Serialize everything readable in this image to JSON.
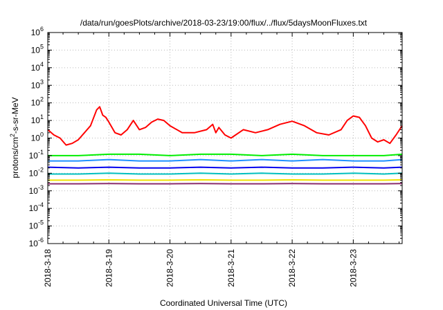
{
  "chart_data": {
    "type": "line",
    "title": "/data/run/goesPlots/archive/2018-03-23/19:00/flux/../flux/5daysMoonFluxes.txt",
    "xlabel": "Coordinated Universal Time (UTC)",
    "ylabel": "protons/cm²-s-sr-MeV",
    "yscale": "log",
    "ylim": [
      1e-06,
      1000000.0
    ],
    "xlim_days": [
      0,
      5.8
    ],
    "xticks": [
      {
        "label": "2018-3-18",
        "day": 0
      },
      {
        "label": "2018-3-19",
        "day": 1
      },
      {
        "label": "2018-3-20",
        "day": 2
      },
      {
        "label": "2018-3-21",
        "day": 3
      },
      {
        "label": "2018-3-22",
        "day": 4
      },
      {
        "label": "2018-3-23",
        "day": 5
      }
    ],
    "yticks": [
      {
        "base": "10",
        "exp": "-6",
        "value": 1e-06
      },
      {
        "base": "10",
        "exp": "-5",
        "value": 1e-05
      },
      {
        "base": "10",
        "exp": "-4",
        "value": 0.0001
      },
      {
        "base": "10",
        "exp": "-3",
        "value": 0.001
      },
      {
        "base": "10",
        "exp": "-2",
        "value": 0.01
      },
      {
        "base": "10",
        "exp": "-1",
        "value": 0.1
      },
      {
        "base": "10",
        "exp": "0",
        "value": 1
      },
      {
        "base": "10",
        "exp": "1",
        "value": 10
      },
      {
        "base": "10",
        "exp": "2",
        "value": 100
      },
      {
        "base": "10",
        "exp": "3",
        "value": 1000
      },
      {
        "base": "10",
        "exp": "4",
        "value": 10000
      },
      {
        "base": "10",
        "exp": "5",
        "value": 100000
      },
      {
        "base": "10",
        "exp": "6",
        "value": 1000000
      }
    ],
    "grid": true,
    "series": [
      {
        "color": "#ff0000",
        "days": [
          0,
          0.1,
          0.2,
          0.3,
          0.4,
          0.5,
          0.6,
          0.7,
          0.8,
          0.85,
          0.9,
          0.95,
          1.0,
          1.1,
          1.2,
          1.3,
          1.4,
          1.5,
          1.6,
          1.7,
          1.8,
          1.9,
          2.0,
          2.2,
          2.4,
          2.6,
          2.7,
          2.75,
          2.8,
          2.9,
          3.0,
          3.2,
          3.4,
          3.6,
          3.8,
          4.0,
          4.2,
          4.4,
          4.6,
          4.8,
          4.9,
          5.0,
          5.1,
          5.2,
          5.3,
          5.4,
          5.5,
          5.6,
          5.7,
          5.8
        ],
        "values": [
          3,
          1.5,
          1.0,
          0.4,
          0.5,
          0.8,
          2,
          5,
          40,
          60,
          20,
          15,
          8,
          2,
          1.5,
          3,
          10,
          3,
          4,
          8,
          12,
          10,
          5,
          2,
          2,
          3,
          6,
          2,
          4,
          1.5,
          1.0,
          3,
          2,
          3,
          6,
          9,
          5,
          2,
          1.5,
          3,
          10,
          18,
          15,
          5,
          1.0,
          0.6,
          0.8,
          0.5,
          1.5,
          5
        ]
      },
      {
        "color": "#00ee00",
        "days": [
          0,
          0.5,
          1.0,
          1.5,
          2.0,
          2.5,
          3.0,
          3.5,
          4.0,
          4.5,
          5.0,
          5.5,
          5.8
        ],
        "values": [
          0.1,
          0.1,
          0.12,
          0.12,
          0.1,
          0.12,
          0.12,
          0.1,
          0.12,
          0.1,
          0.1,
          0.1,
          0.12
        ]
      },
      {
        "color": "#1e90ff",
        "days": [
          0,
          0.5,
          1.0,
          1.5,
          2.0,
          2.5,
          3.0,
          3.5,
          4.0,
          4.5,
          5.0,
          5.5,
          5.8
        ],
        "values": [
          0.05,
          0.05,
          0.06,
          0.05,
          0.05,
          0.06,
          0.05,
          0.06,
          0.05,
          0.06,
          0.05,
          0.05,
          0.06
        ]
      },
      {
        "color": "#0000ee",
        "days": [
          0,
          0.5,
          1.0,
          1.5,
          2.0,
          2.5,
          3.0,
          3.5,
          4.0,
          4.5,
          5.0,
          5.5,
          5.8
        ],
        "values": [
          0.022,
          0.02,
          0.022,
          0.02,
          0.02,
          0.022,
          0.02,
          0.022,
          0.02,
          0.02,
          0.022,
          0.02,
          0.022
        ]
      },
      {
        "color": "#00bfbf",
        "days": [
          0,
          0.5,
          1.0,
          1.5,
          2.0,
          2.5,
          3.0,
          3.5,
          4.0,
          4.5,
          5.0,
          5.5,
          5.8
        ],
        "values": [
          0.009,
          0.009,
          0.01,
          0.009,
          0.009,
          0.01,
          0.009,
          0.01,
          0.009,
          0.009,
          0.01,
          0.009,
          0.01
        ]
      },
      {
        "color": "#f0e000",
        "days": [
          0,
          0.5,
          1.0,
          1.5,
          2.0,
          2.5,
          3.0,
          3.5,
          4.0,
          4.5,
          5.0,
          5.5,
          5.8
        ],
        "values": [
          0.004,
          0.004,
          0.0042,
          0.004,
          0.004,
          0.0042,
          0.004,
          0.004,
          0.0042,
          0.004,
          0.004,
          0.004,
          0.0042
        ]
      },
      {
        "color": "#8b2b6b",
        "days": [
          0,
          0.5,
          1.0,
          1.5,
          2.0,
          2.5,
          3.0,
          3.5,
          4.0,
          4.5,
          5.0,
          5.5,
          5.8
        ],
        "values": [
          0.0025,
          0.0025,
          0.0026,
          0.0025,
          0.0025,
          0.0026,
          0.0025,
          0.0025,
          0.0026,
          0.0025,
          0.0025,
          0.0025,
          0.0026
        ]
      }
    ]
  }
}
